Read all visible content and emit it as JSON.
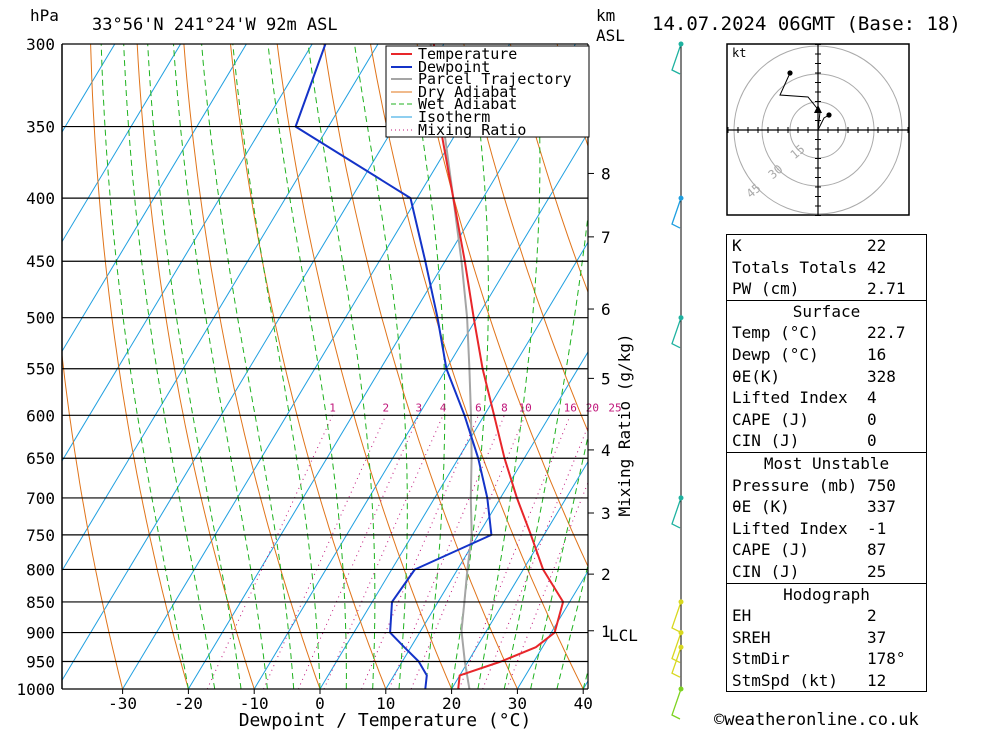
{
  "header": {
    "pressure_unit": "hPa",
    "location": "33°56'N  241°24'W  92m  ASL",
    "km_label": "km",
    "asl_label": "ASL",
    "datetime": "14.07.2024  06GMT  (Base: 18)"
  },
  "chart_data": {
    "type": "skew-t",
    "title": "33°56'N  241°24'W  92m  ASL",
    "xlabel": "Dewpoint / Temperature (°C)",
    "ylabel": "hPa",
    "x_ticks": [
      -30,
      -20,
      -10,
      0,
      10,
      20,
      30,
      40
    ],
    "xlim": [
      -40,
      40
    ],
    "pressure_levels": [
      300,
      350,
      400,
      450,
      500,
      550,
      600,
      650,
      700,
      750,
      800,
      850,
      900,
      950,
      1000
    ],
    "height_ticks": [
      {
        "label": "8",
        "p": 382
      },
      {
        "label": "7",
        "p": 430
      },
      {
        "label": "6",
        "p": 492
      },
      {
        "label": "5",
        "p": 560
      },
      {
        "label": "4",
        "p": 640
      },
      {
        "label": "3",
        "p": 720
      },
      {
        "label": "2",
        "p": 807
      },
      {
        "label": "1",
        "p": 897
      }
    ],
    "lcl_label": "LCL",
    "lcl_pressure": 897,
    "mixing_ratio_label": "Mixing Ratio (g/kg)",
    "mixing_ratios": [
      "1",
      "2",
      "3",
      "4",
      "6",
      "8",
      "10",
      "16",
      "20",
      "25"
    ],
    "mixing_ratio_values": [
      1,
      2,
      3,
      4,
      6,
      8,
      10,
      16,
      20,
      25
    ],
    "legend": [
      "Temperature",
      "Dewpoint",
      "Parcel Trajectory",
      "Dry Adiabat",
      "Wet Adiabat",
      "Isotherm",
      "Mixing Ratio"
    ],
    "colors": {
      "temperature": "#e8262a",
      "dewpoint": "#1433c8",
      "parcel": "#a5a5a5",
      "dry_adiabat": "#e0741a",
      "wet_adiabat": "#1fb21f",
      "isotherm": "#1f9fe0",
      "mixing_ratio": "#c0157a"
    },
    "temperature": [
      {
        "p": 1000,
        "t": 21.0
      },
      {
        "p": 975,
        "t": 20.0
      },
      {
        "p": 950,
        "t": 25.0
      },
      {
        "p": 925,
        "t": 29.0
      },
      {
        "p": 900,
        "t": 30.5
      },
      {
        "p": 850,
        "t": 29.0
      },
      {
        "p": 800,
        "t": 23.0
      },
      {
        "p": 750,
        "t": 18.0
      },
      {
        "p": 700,
        "t": 12.5
      },
      {
        "p": 650,
        "t": 7.0
      },
      {
        "p": 600,
        "t": 1.5
      },
      {
        "p": 550,
        "t": -4.5
      },
      {
        "p": 500,
        "t": -10.5
      },
      {
        "p": 450,
        "t": -17.0
      },
      {
        "p": 400,
        "t": -24.5
      },
      {
        "p": 350,
        "t": -33.0
      },
      {
        "p": 300,
        "t": -41.5
      }
    ],
    "dewpoint": [
      {
        "p": 1000,
        "t": 16.0
      },
      {
        "p": 975,
        "t": 15.0
      },
      {
        "p": 950,
        "t": 12.5
      },
      {
        "p": 925,
        "t": 9.0
      },
      {
        "p": 900,
        "t": 5.5
      },
      {
        "p": 850,
        "t": 3.0
      },
      {
        "p": 800,
        "t": 3.5
      },
      {
        "p": 750,
        "t": 12.0
      },
      {
        "p": 700,
        "t": 8.0
      },
      {
        "p": 650,
        "t": 3.0
      },
      {
        "p": 600,
        "t": -3.0
      },
      {
        "p": 550,
        "t": -10.0
      },
      {
        "p": 500,
        "t": -16.0
      },
      {
        "p": 450,
        "t": -23.0
      },
      {
        "p": 400,
        "t": -31.0
      },
      {
        "p": 350,
        "t": -55.0
      },
      {
        "p": 300,
        "t": -58.0
      }
    ],
    "parcel": [
      {
        "p": 1000,
        "t": 22.7
      },
      {
        "p": 950,
        "t": 19.5
      },
      {
        "p": 897,
        "t": 16.2
      },
      {
        "p": 850,
        "t": 14.0
      },
      {
        "p": 800,
        "t": 11.5
      },
      {
        "p": 750,
        "t": 9.0
      },
      {
        "p": 700,
        "t": 5.5
      },
      {
        "p": 650,
        "t": 2.0
      },
      {
        "p": 600,
        "t": -2.0
      },
      {
        "p": 550,
        "t": -6.5
      },
      {
        "p": 500,
        "t": -11.5
      },
      {
        "p": 450,
        "t": -17.5
      },
      {
        "p": 400,
        "t": -24.5
      },
      {
        "p": 350,
        "t": -32.5
      },
      {
        "p": 300,
        "t": -42.0
      }
    ]
  },
  "wind_profile": [
    {
      "p": 300,
      "color": "#1fb2a0"
    },
    {
      "p": 400,
      "color": "#1f9fe0"
    },
    {
      "p": 500,
      "color": "#1fb2a0"
    },
    {
      "p": 700,
      "color": "#1fb2a0"
    },
    {
      "p": 850,
      "color": "#d8d81f"
    },
    {
      "p": 900,
      "color": "#d8d81f"
    },
    {
      "p": 925,
      "color": "#d8d81f"
    },
    {
      "p": 1000,
      "color": "#7ed321"
    }
  ],
  "hodograph": {
    "unit_label": "kt",
    "rings": [
      "15",
      "30",
      "45"
    ]
  },
  "indices": {
    "k": {
      "label": "K",
      "value": "22"
    },
    "tt": {
      "label": "Totals Totals",
      "value": "42"
    },
    "pw": {
      "label": "PW (cm)",
      "value": "2.71"
    }
  },
  "surface": {
    "title": "Surface",
    "temp": {
      "label": "Temp (°C)",
      "value": "22.7"
    },
    "dewp": {
      "label": "Dewp (°C)",
      "value": "16"
    },
    "theta": {
      "label": "θE(K)",
      "value": "328"
    },
    "li": {
      "label": "Lifted Index",
      "value": "4"
    },
    "cape": {
      "label": "CAPE (J)",
      "value": "0"
    },
    "cin": {
      "label": "CIN (J)",
      "value": "0"
    }
  },
  "most_unstable": {
    "title": "Most Unstable",
    "pressure": {
      "label": "Pressure (mb)",
      "value": "750"
    },
    "theta": {
      "label": "θE (K)",
      "value": "337"
    },
    "li": {
      "label": "Lifted Index",
      "value": "-1"
    },
    "cape": {
      "label": "CAPE (J)",
      "value": "87"
    },
    "cin": {
      "label": "CIN (J)",
      "value": "25"
    }
  },
  "hodo_params": {
    "title": "Hodograph",
    "eh": {
      "label": "EH",
      "value": "2"
    },
    "sreh": {
      "label": "SREH",
      "value": "37"
    },
    "stmdir": {
      "label": "StmDir",
      "value": "178°"
    },
    "stmspd": {
      "label": "StmSpd (kt)",
      "value": "12"
    }
  },
  "footer": {
    "copyright": "©weatheronline.co.uk"
  }
}
